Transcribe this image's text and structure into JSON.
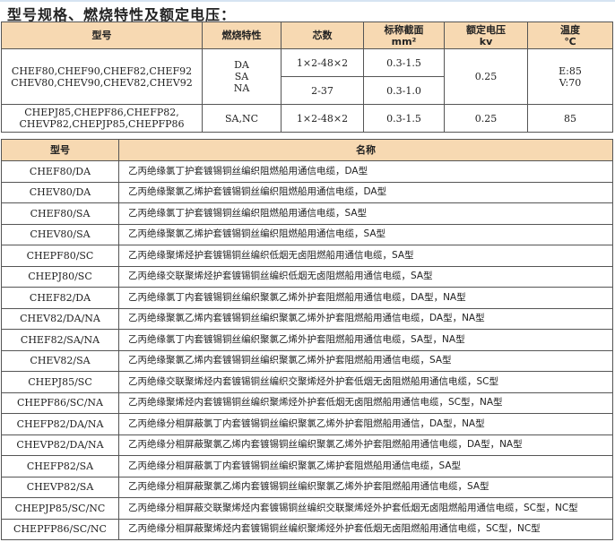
{
  "title": "型号规格、燃烧特性及额定电压：",
  "spec_table": {
    "headers": [
      "型号",
      "燃烧特性",
      "芯数",
      "标称截面",
      "mm²",
      "额定电压",
      "kv",
      "温度",
      "℃"
    ],
    "group1": {
      "models": [
        "CHEF80,CHEF90,CHEF82,CHEF92",
        "CHEV80,CHEV90,CHEV82,CHEV92"
      ],
      "flame": [
        "DA",
        "SA",
        "NA"
      ],
      "cores": [
        "1×2-48×2",
        "2-37"
      ],
      "sections": [
        "0.3-1.5",
        "0.3-1.0"
      ],
      "voltage": "0.25",
      "temp": [
        "E:85",
        "V:70"
      ]
    },
    "group2": {
      "models": [
        "CHEPJ85,CHEPF86,CHEFP82,",
        "CHEVP82,CHEPJP85,CHEPFP86"
      ],
      "flame": "SA,NC",
      "cores": "1×2-48×2",
      "section": "0.3-1.5",
      "voltage": "0.25",
      "temp": "85"
    }
  },
  "name_table": {
    "headers": [
      "型号",
      "名称"
    ],
    "rows": [
      [
        "CHEF80/DA",
        "乙丙绝缘氯丁护套镀锡铜丝编织阻燃船用通信电缆，DA型"
      ],
      [
        "CHEV80/DA",
        "乙丙绝缘聚氯乙烯护套镀锡铜丝编织阻燃船用通信电缆，DA型"
      ],
      [
        "CHEF80/SA",
        "乙丙绝缘氯丁护套镀锡铜丝编织阻燃船用通信电缆，SA型"
      ],
      [
        "CHEV80/SA",
        "乙丙绝缘聚氯乙烯护套镀锡铜丝编织阻燃船用通信电缆，SA型"
      ],
      [
        "CHEPF80/SC",
        "乙丙绝缘聚烯烃护套镀锡铜丝编织低烟无卤阻燃船用通信电缆，SA型"
      ],
      [
        "CHEPJ80/SC",
        "乙丙绝缘交联聚烯烃护套镀锡铜丝编织低烟无卤阻燃船用通信电缆，SA型"
      ],
      [
        "CHEF82/DA",
        "乙丙绝缘氯丁内套镀锡铜丝编织聚氯乙烯外护套阻燃船用通信电缆，DA型，NA型"
      ],
      [
        "CHEV82/DA/NA",
        "乙丙绝缘聚氯乙烯内套镀锡铜丝编织聚氯乙烯外护套阻燃船用通信电缆，DA型，NA型"
      ],
      [
        "CHEF82/SA/NA",
        "乙丙绝缘氯丁内套镀锡铜丝编织聚氯乙烯外护套阻燃船用通信电缆，SA型，NA型"
      ],
      [
        "CHEV82/SA",
        "乙丙绝缘聚氯乙烯内套镀锡铜丝编织聚氯乙烯外护套阻燃船用通信电缆，SA型"
      ],
      [
        "CHEPJ85/SC",
        "乙丙绝缘交联聚烯烃内套镀锡铜丝编织交聚烯烃外护套低烟无卤阻燃船用通信电缆，SC型"
      ],
      [
        "CHEPF86/SC/NA",
        "乙丙绝缘聚烯烃内套镀锡铜丝编织聚烯烃外护套低烟无卤阻燃船用通信电缆，SC型，NA型"
      ],
      [
        "CHEFP82/DA/NA",
        "乙丙绝缘分相屏蔽氯丁内套镀锡铜丝编织聚氯乙烯外护套阻燃船用通信，DA型，NA型"
      ],
      [
        "CHEVP82/DA/NA",
        "乙丙绝缘分相屏蔽聚氯乙烯内套镀锡铜丝编织聚氯乙烯外护套阻燃船用通信电缆，DA型，NA型"
      ],
      [
        "CHEFP82/SA",
        "乙丙绝缘分相屏蔽氯丁内套镀锡铜丝编织聚氯乙烯护套阻燃船用通信电缆，SA型"
      ],
      [
        "CHEVP82/SA",
        "乙丙绝缘分相屏蔽聚氯乙烯内套镀锡铜丝编织聚氯乙烯外护套阻燃船用通信电缆，SA型"
      ],
      [
        "CHEPJP85/SC/NC",
        "乙丙绝缘分相屏蔽交联聚烯烃内套镀锡铜丝编织交联聚烯烃外护套低烟无卤阻燃船用通信电缆，SC型，NC型"
      ],
      [
        "CHEPFP86/SC/NC",
        "乙丙绝缘分相屏蔽聚烯烃内套镀锡铜丝编织聚烯烃外护套低烟无卤阻燃船用通信电缆，SC型，NC型"
      ]
    ]
  },
  "colors": {
    "header_bg": "#f7d9b2",
    "border": "#555555"
  }
}
